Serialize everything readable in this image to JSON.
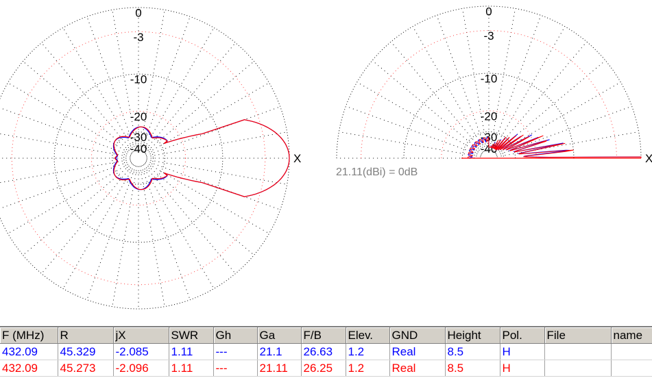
{
  "chart_data": [
    {
      "type": "polar",
      "view": "azimuth",
      "ring_labels": [
        "0",
        "-3",
        "-10",
        "-20",
        "-30",
        "-40"
      ],
      "ring_db": [
        0,
        -3,
        -10,
        -20,
        -30,
        -40
      ],
      "axis_marker": "X",
      "series": [
        {
          "color": "#0000ff",
          "pattern": "main-lobe"
        },
        {
          "color": "#ff0000",
          "pattern": "main-lobe"
        }
      ]
    },
    {
      "type": "polar",
      "view": "elevation",
      "ring_labels": [
        "0",
        "-3",
        "-10",
        "-20",
        "-30",
        "-40"
      ],
      "ring_db": [
        0,
        -3,
        -10,
        -20,
        -30,
        -40
      ],
      "axis_marker": "X",
      "gain_reference": "21.11(dBi) = 0dB",
      "series": [
        {
          "color": "#0000ff"
        },
        {
          "color": "#ff0000"
        }
      ]
    }
  ],
  "table": {
    "columns": [
      "F (MHz)",
      "R",
      "jX",
      "SWR",
      "Gh",
      "Ga",
      "F/B",
      "Elev.",
      "GND",
      "Height",
      "Pol.",
      "File",
      "name"
    ],
    "rows": [
      {
        "color": "#0000ff",
        "cells": [
          "432.09",
          "45.329",
          "-2.085",
          "1.11",
          "---",
          "21.1",
          "26.63",
          "1.2",
          "Real",
          "8.5",
          "H",
          "",
          ""
        ]
      },
      {
        "color": "#ff0000",
        "cells": [
          "432.09",
          "45.273",
          "-2.096",
          "1.11",
          "---",
          "21.11",
          "26.25",
          "1.2",
          "Real",
          "8.5",
          "H",
          "",
          ""
        ]
      }
    ]
  }
}
